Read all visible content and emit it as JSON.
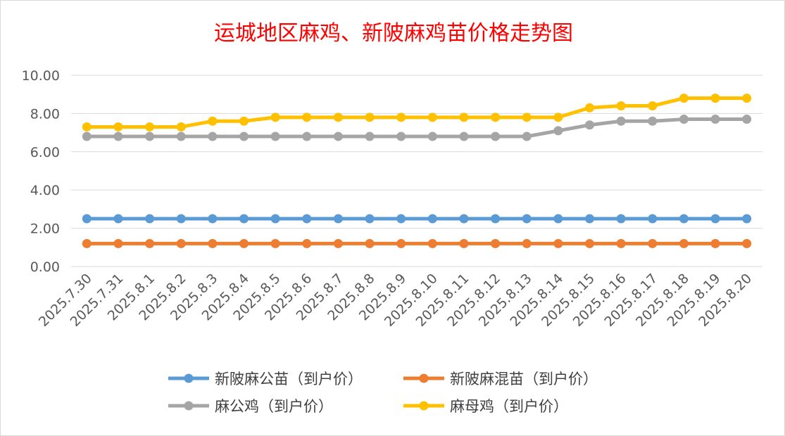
{
  "chart_data": {
    "type": "line",
    "title": "运城地区麻鸡、新陂麻鸡苗价格走势图",
    "xlabel": "",
    "ylabel": "",
    "ylim": [
      0,
      10
    ],
    "ytick_labels": [
      "0.00",
      "2.00",
      "4.00",
      "6.00",
      "8.00",
      "10.00"
    ],
    "grid": true,
    "legend_position": "bottom",
    "categories": [
      "2025.7.30",
      "2025.7.31",
      "2025.8.1",
      "2025.8.2",
      "2025.8.3",
      "2025.8.4",
      "2025.8.5",
      "2025.8.6",
      "2025.8.7",
      "2025.8.8",
      "2025.8.9",
      "2025.8.10",
      "2025.8.11",
      "2025.8.12",
      "2025.8.13",
      "2025.8.14",
      "2025.8.15",
      "2025.8.16",
      "2025.8.17",
      "2025.8.18",
      "2025.8.19",
      "2025.8.20"
    ],
    "series": [
      {
        "name": "新陂麻公苗（到户价）",
        "color": "#5b9bd5",
        "values": [
          2.5,
          2.5,
          2.5,
          2.5,
          2.5,
          2.5,
          2.5,
          2.5,
          2.5,
          2.5,
          2.5,
          2.5,
          2.5,
          2.5,
          2.5,
          2.5,
          2.5,
          2.5,
          2.5,
          2.5,
          2.5,
          2.5
        ]
      },
      {
        "name": "新陂麻混苗（到户价）",
        "color": "#ed7d31",
        "values": [
          1.2,
          1.2,
          1.2,
          1.2,
          1.2,
          1.2,
          1.2,
          1.2,
          1.2,
          1.2,
          1.2,
          1.2,
          1.2,
          1.2,
          1.2,
          1.2,
          1.2,
          1.2,
          1.2,
          1.2,
          1.2,
          1.2
        ]
      },
      {
        "name": "麻公鸡（到户价）",
        "color": "#a5a5a5",
        "values": [
          6.8,
          6.8,
          6.8,
          6.8,
          6.8,
          6.8,
          6.8,
          6.8,
          6.8,
          6.8,
          6.8,
          6.8,
          6.8,
          6.8,
          6.8,
          7.1,
          7.4,
          7.6,
          7.6,
          7.7,
          7.7,
          7.7
        ]
      },
      {
        "name": "麻母鸡（到户价）",
        "color": "#ffc000",
        "values": [
          7.3,
          7.3,
          7.3,
          7.3,
          7.6,
          7.6,
          7.8,
          7.8,
          7.8,
          7.8,
          7.8,
          7.8,
          7.8,
          7.8,
          7.8,
          7.8,
          8.3,
          8.4,
          8.4,
          8.8,
          8.8,
          8.8
        ]
      }
    ]
  }
}
